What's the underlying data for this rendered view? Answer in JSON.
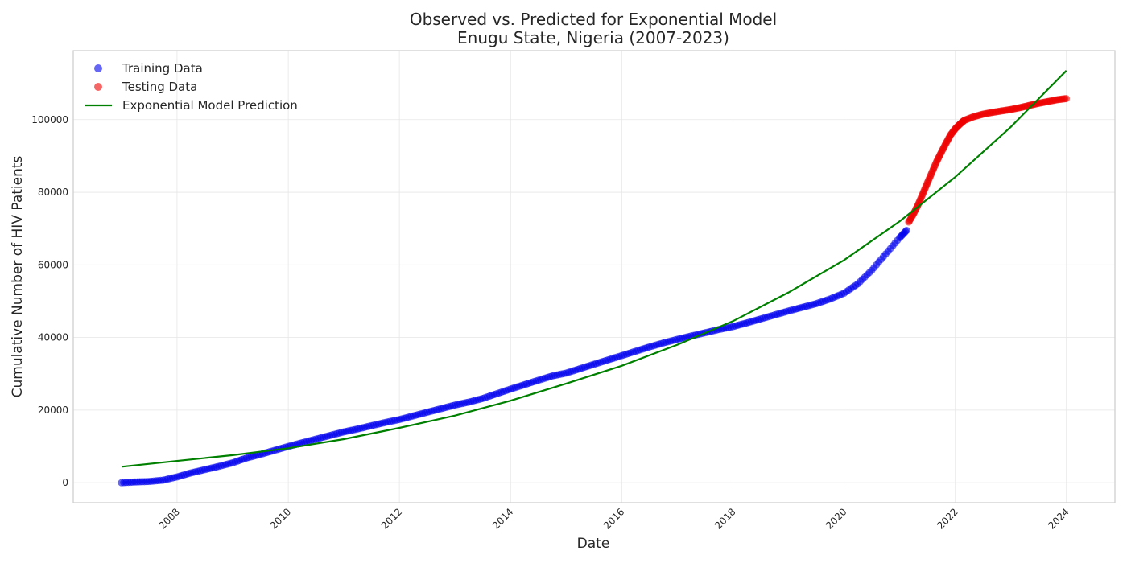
{
  "chart_data": {
    "type": "scatter",
    "title_lines": [
      "Observed vs. Predicted for Exponential Model",
      "Enugu State, Nigeria (2007-2023)"
    ],
    "xlabel": "Date",
    "ylabel": "Cumulative Number of HIV Patients",
    "x_type": "date",
    "xlim": [
      "2006-02-18",
      "2024-11-15"
    ],
    "ylim": [
      -5500,
      119000
    ],
    "x_ticks": [
      "2008",
      "2010",
      "2012",
      "2014",
      "2016",
      "2018",
      "2020",
      "2022",
      "2024"
    ],
    "y_ticks": [
      0,
      20000,
      40000,
      60000,
      80000,
      100000
    ],
    "grid": true,
    "legend_position": "top-left",
    "legend": [
      {
        "label": "Training Data",
        "kind": "marker",
        "color": "#0000ee"
      },
      {
        "label": "Testing Data",
        "kind": "marker",
        "color": "#ee0000"
      },
      {
        "label": "Exponential Model Prediction",
        "kind": "line",
        "color": "#008000"
      }
    ],
    "series": [
      {
        "name": "Training Data",
        "kind": "scatter",
        "color": "#0000ee",
        "points": [
          [
            "2007-01-01",
            0
          ],
          [
            "2007-04-01",
            200
          ],
          [
            "2007-07-01",
            350
          ],
          [
            "2007-10-01",
            700
          ],
          [
            "2008-01-01",
            1600
          ],
          [
            "2008-04-01",
            2700
          ],
          [
            "2008-07-01",
            3600
          ],
          [
            "2008-10-01",
            4500
          ],
          [
            "2009-01-01",
            5500
          ],
          [
            "2009-04-01",
            6800
          ],
          [
            "2009-07-01",
            7800
          ],
          [
            "2009-10-01",
            8900
          ],
          [
            "2010-01-01",
            10000
          ],
          [
            "2010-04-01",
            11000
          ],
          [
            "2010-07-01",
            12000
          ],
          [
            "2010-10-01",
            13000
          ],
          [
            "2011-01-01",
            14000
          ],
          [
            "2011-04-01",
            14800
          ],
          [
            "2011-07-01",
            15700
          ],
          [
            "2011-10-01",
            16600
          ],
          [
            "2012-01-01",
            17400
          ],
          [
            "2012-04-01",
            18400
          ],
          [
            "2012-07-01",
            19400
          ],
          [
            "2012-10-01",
            20400
          ],
          [
            "2013-01-01",
            21400
          ],
          [
            "2013-04-01",
            22200
          ],
          [
            "2013-07-01",
            23200
          ],
          [
            "2013-10-01",
            24500
          ],
          [
            "2014-01-01",
            25800
          ],
          [
            "2014-04-01",
            27000
          ],
          [
            "2014-07-01",
            28200
          ],
          [
            "2014-10-01",
            29400
          ],
          [
            "2015-01-01",
            30200
          ],
          [
            "2015-04-01",
            31400
          ],
          [
            "2015-07-01",
            32600
          ],
          [
            "2015-10-01",
            33800
          ],
          [
            "2016-01-01",
            35000
          ],
          [
            "2016-04-01",
            36200
          ],
          [
            "2016-07-01",
            37400
          ],
          [
            "2016-10-01",
            38500
          ],
          [
            "2017-01-01",
            39500
          ],
          [
            "2017-04-01",
            40400
          ],
          [
            "2017-07-01",
            41300
          ],
          [
            "2017-10-01",
            42200
          ],
          [
            "2018-01-01",
            43000
          ],
          [
            "2018-04-01",
            44000
          ],
          [
            "2018-07-01",
            45100
          ],
          [
            "2018-10-01",
            46200
          ],
          [
            "2019-01-01",
            47300
          ],
          [
            "2019-04-01",
            48300
          ],
          [
            "2019-07-01",
            49300
          ],
          [
            "2019-10-01",
            50600
          ],
          [
            "2020-01-01",
            52200
          ],
          [
            "2020-04-01",
            54800
          ],
          [
            "2020-07-01",
            58500
          ],
          [
            "2020-10-01",
            63000
          ],
          [
            "2021-01-01",
            67500
          ],
          [
            "2021-02-15",
            69500
          ]
        ]
      },
      {
        "name": "Testing Data",
        "kind": "scatter",
        "color": "#ee0000",
        "points": [
          [
            "2021-03-01",
            71800
          ],
          [
            "2021-04-01",
            74000
          ],
          [
            "2021-05-01",
            76500
          ],
          [
            "2021-06-01",
            79500
          ],
          [
            "2021-07-01",
            82500
          ],
          [
            "2021-08-01",
            85500
          ],
          [
            "2021-09-01",
            88500
          ],
          [
            "2021-10-01",
            91000
          ],
          [
            "2021-11-01",
            93500
          ],
          [
            "2021-12-01",
            95800
          ],
          [
            "2022-01-01",
            97500
          ],
          [
            "2022-02-01",
            98800
          ],
          [
            "2022-03-01",
            99800
          ],
          [
            "2022-05-01",
            100800
          ],
          [
            "2022-07-01",
            101500
          ],
          [
            "2022-09-01",
            102000
          ],
          [
            "2022-11-01",
            102400
          ],
          [
            "2023-01-01",
            102800
          ],
          [
            "2023-03-01",
            103300
          ],
          [
            "2023-05-01",
            103900
          ],
          [
            "2023-07-01",
            104500
          ],
          [
            "2023-09-01",
            105000
          ],
          [
            "2023-11-01",
            105500
          ],
          [
            "2023-12-31",
            105800
          ]
        ]
      },
      {
        "name": "Exponential Model Prediction",
        "kind": "line",
        "color": "#008000",
        "points": [
          [
            "2007-01-01",
            4400
          ],
          [
            "2008-01-01",
            6000
          ],
          [
            "2009-01-01",
            7600
          ],
          [
            "2010-01-01",
            9500
          ],
          [
            "2011-01-01",
            12000
          ],
          [
            "2012-01-01",
            15100
          ],
          [
            "2013-01-01",
            18500
          ],
          [
            "2014-01-01",
            22600
          ],
          [
            "2015-01-01",
            27300
          ],
          [
            "2016-01-01",
            32200
          ],
          [
            "2017-01-01",
            38000
          ],
          [
            "2018-01-01",
            44500
          ],
          [
            "2019-01-01",
            52400
          ],
          [
            "2020-01-01",
            61300
          ],
          [
            "2021-01-01",
            72000
          ],
          [
            "2022-01-01",
            84200
          ],
          [
            "2023-01-01",
            98000
          ],
          [
            "2024-01-01",
            113500
          ]
        ]
      }
    ]
  }
}
